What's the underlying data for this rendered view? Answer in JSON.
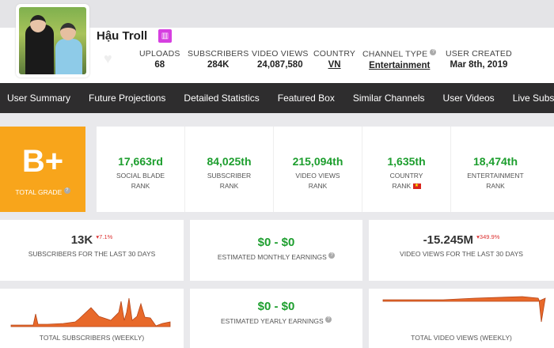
{
  "channel": {
    "name": "Hậu Troll",
    "badge_icon": "chart-icon"
  },
  "stats": [
    {
      "label": "UPLOADS",
      "value": "68"
    },
    {
      "label": "SUBSCRIBERS",
      "value": "284K"
    },
    {
      "label": "VIDEO VIEWS",
      "value": "24,087,580"
    },
    {
      "label": "COUNTRY",
      "value": "VN"
    },
    {
      "label": "CHANNEL TYPE",
      "value": "Entertainment"
    },
    {
      "label": "USER CREATED",
      "value": "Mar 8th, 2019"
    }
  ],
  "nav": [
    "User Summary",
    "Future Projections",
    "Detailed Statistics",
    "Featured Box",
    "Similar Channels",
    "User Videos",
    "Live Subscriber"
  ],
  "grade": {
    "value": "B+",
    "label": "TOTAL GRADE",
    "color": "#f8a51b"
  },
  "ranks": [
    {
      "value": "17,663rd",
      "l1": "SOCIAL BLADE",
      "l2": "RANK"
    },
    {
      "value": "84,025th",
      "l1": "SUBSCRIBER",
      "l2": "RANK"
    },
    {
      "value": "215,094th",
      "l1": "VIDEO VIEWS",
      "l2": "RANK"
    },
    {
      "value": "1,635th",
      "l1": "COUNTRY",
      "l2": "RANK"
    },
    {
      "value": "18,474th",
      "l1": "ENTERTAINMENT",
      "l2": "RANK"
    }
  ],
  "cards": {
    "subs30": {
      "value": "13K",
      "change": "▾7.1%",
      "label": "SUBSCRIBERS FOR THE LAST 30 DAYS"
    },
    "monthly": {
      "value": "$0 - $0",
      "label": "ESTIMATED MONTHLY EARNINGS"
    },
    "views30": {
      "value": "-15.245M",
      "change": "▾349.9%",
      "label": "VIDEO VIEWS FOR THE LAST 30 DAYS"
    },
    "totalSubs": {
      "label": "TOTAL SUBSCRIBERS (WEEKLY)"
    },
    "yearly": {
      "value": "$0 - $0",
      "label": "ESTIMATED YEARLY EARNINGS"
    },
    "totalViews": {
      "label": "TOTAL VIDEO VIEWS (WEEKLY)"
    }
  },
  "colors": {
    "accent": "#f8a51b",
    "rank_green": "#1d9e2e",
    "nav_bg": "#2e2d2e",
    "spark": "#e8692a"
  }
}
